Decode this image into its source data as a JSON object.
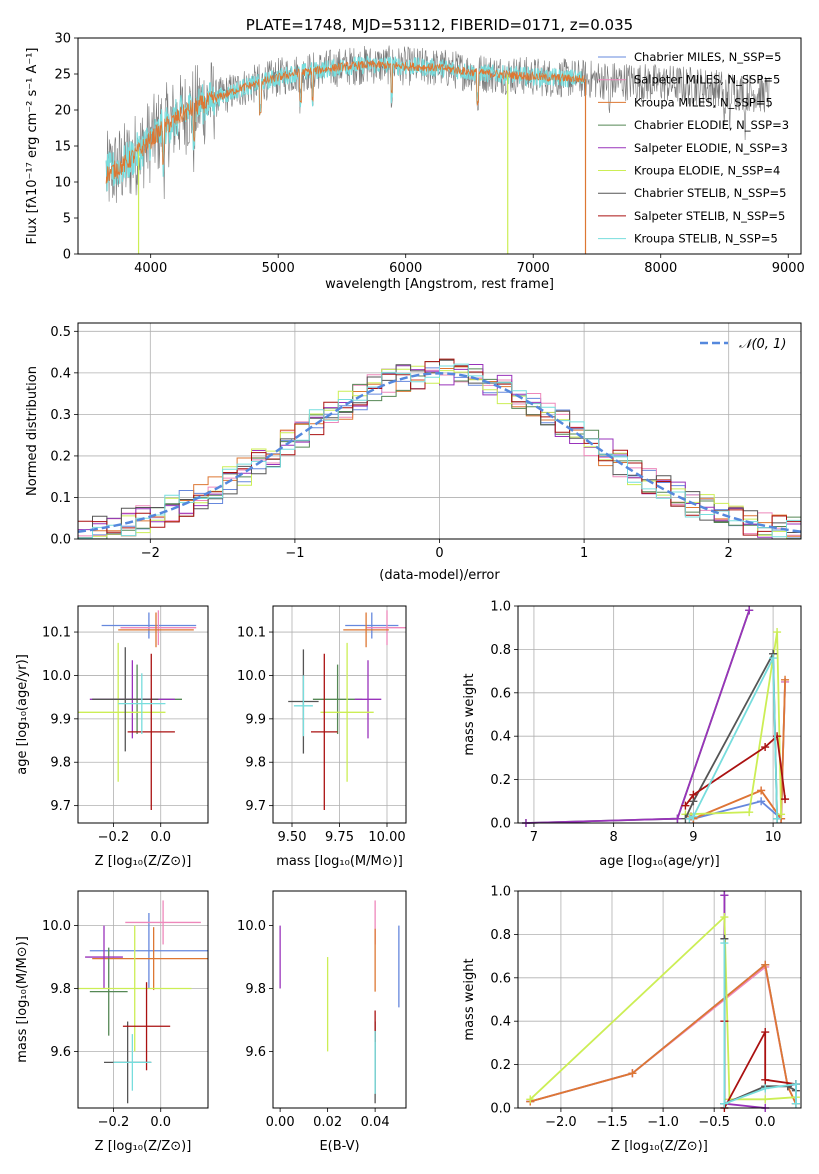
{
  "colors": {
    "chabrier_miles": "#6688dd",
    "salpeter_miles": "#ee88bb",
    "kroupa_miles": "#dd7733",
    "chabrier_elodie": "#558855",
    "salpeter_elodie": "#9933bb",
    "kroupa_elodie": "#ccee55",
    "chabrier_stelib": "#555555",
    "salpeter_stelib": "#aa1111",
    "kroupa_stelib": "#77dddd"
  },
  "chart_data": [
    {
      "id": "spectrum",
      "type": "line",
      "title": "PLATE=1748, MJD=53112, FIBERID=0171, z=0.035",
      "xlabel": "wavelength [Angstrom, rest frame]",
      "ylabel": "Flux [fλ10⁻¹⁷ erg cm⁻² s⁻¹ A⁻¹]",
      "xlim": [
        3430,
        9100
      ],
      "ylim": [
        0,
        30
      ],
      "xticks": [
        4000,
        5000,
        6000,
        7000,
        8000,
        9000
      ],
      "yticks": [
        0,
        5,
        10,
        15,
        20,
        25,
        30
      ],
      "grid": false,
      "legend_position": "top-right",
      "legend": [
        "Chabrier MILES, N_SSP=5",
        "Salpeter MILES, N_SSP=5",
        "Kroupa MILES, N_SSP=5",
        "Chabrier ELODIE, N_SSP=3",
        "Salpeter ELODIE, N_SSP=3",
        "Kroupa ELODIE, N_SSP=4",
        "Chabrier STELIB, N_SSP=5",
        "Salpeter STELIB, N_SSP=5",
        "Kroupa STELIB, N_SSP=5"
      ],
      "continuum": {
        "x": [
          3650,
          3800,
          3950,
          4100,
          4300,
          4500,
          4700,
          4900,
          5100,
          5300,
          5500,
          5700,
          5900,
          6100,
          6300,
          6500,
          6700,
          6900,
          7100,
          7300,
          7500,
          7700,
          8000,
          8300,
          8600,
          8850
        ],
        "y": [
          11,
          12.5,
          15,
          17.5,
          20,
          21.5,
          23,
          24,
          25,
          25.5,
          26,
          26.3,
          26.2,
          26,
          25.8,
          25.3,
          25,
          24.8,
          24.5,
          24.4,
          24.2,
          24,
          23.7,
          23.3,
          22.6,
          22.2
        ]
      },
      "drops": [
        {
          "series": "Kroupa ELODIE",
          "x": 3905
        },
        {
          "series": "Kroupa ELODIE",
          "x": 6800
        },
        {
          "series": "Kroupa MILES",
          "x": 7410
        }
      ]
    },
    {
      "id": "residuals",
      "type": "line",
      "xlabel": "(data-model)/error",
      "ylabel": "Normed distribution",
      "xlim": [
        -2.5,
        2.5
      ],
      "ylim": [
        0,
        0.52
      ],
      "xticks": [
        -2,
        -1,
        0,
        1,
        2
      ],
      "yticks": [
        0.0,
        0.1,
        0.2,
        0.3,
        0.4,
        0.5
      ],
      "grid": true,
      "legend_position": "top-right",
      "legend": [
        "𝒩(0, 1)"
      ],
      "gaussian": {
        "mean": 0,
        "sigma": 1
      }
    },
    {
      "id": "age_vs_Z",
      "type": "scatter",
      "xlabel": "Z [log₁₀(Z/Z⊙)]",
      "ylabel": "age  [log₁₀(age/yr)]",
      "xlim": [
        -0.35,
        0.2
      ],
      "ylim": [
        9.66,
        10.16
      ],
      "xticks": [
        -0.2,
        0.0
      ],
      "yticks": [
        9.7,
        9.8,
        9.9,
        10.0,
        10.1
      ],
      "grid": true,
      "points": [
        {
          "series": "chabrier_miles",
          "x": -0.05,
          "y": 10.115,
          "xerr": 0.2,
          "yerr": 0.03
        },
        {
          "series": "salpeter_miles",
          "x": -0.01,
          "y": 10.11,
          "xerr": 0.16,
          "yerr": 0.04
        },
        {
          "series": "kroupa_miles",
          "x": -0.02,
          "y": 10.105,
          "xerr": 0.16,
          "yerr": 0.04
        },
        {
          "series": "chabrier_elodie",
          "x": -0.1,
          "y": 9.945,
          "xerr": 0.19,
          "yerr": 0.08
        },
        {
          "series": "salpeter_elodie",
          "x": -0.12,
          "y": 9.945,
          "xerr": 0.18,
          "yerr": 0.09
        },
        {
          "series": "kroupa_elodie",
          "x": -0.18,
          "y": 9.915,
          "xerr": 0.2,
          "yerr": 0.16
        },
        {
          "series": "chabrier_stelib",
          "x": -0.15,
          "y": 9.945,
          "xerr": 0.14,
          "yerr": 0.12
        },
        {
          "series": "salpeter_stelib",
          "x": -0.04,
          "y": 9.87,
          "xerr": 0.1,
          "yerr": 0.18
        },
        {
          "series": "kroupa_stelib",
          "x": -0.08,
          "y": 9.935,
          "xerr": 0.1,
          "yerr": 0.07
        }
      ]
    },
    {
      "id": "age_vs_mass",
      "type": "scatter",
      "xlabel": "mass [log₁₀(M/M⊙)]",
      "xlim": [
        9.4,
        10.1
      ],
      "ylim": [
        9.66,
        10.16
      ],
      "xticks": [
        9.5,
        9.75,
        10.0
      ],
      "yticks": [
        9.7,
        9.8,
        9.9,
        10.0,
        10.1
      ],
      "grid": true,
      "points": [
        {
          "series": "chabrier_miles",
          "x": 9.92,
          "y": 10.115,
          "xerr": 0.14,
          "yerr": 0.03
        },
        {
          "series": "salpeter_miles",
          "x": 10.0,
          "y": 10.11,
          "xerr": 0.11,
          "yerr": 0.04
        },
        {
          "series": "kroupa_miles",
          "x": 9.89,
          "y": 10.105,
          "xerr": 0.12,
          "yerr": 0.04
        },
        {
          "series": "chabrier_elodie",
          "x": 9.74,
          "y": 9.945,
          "xerr": 0.13,
          "yerr": 0.08
        },
        {
          "series": "salpeter_elodie",
          "x": 9.9,
          "y": 9.945,
          "xerr": 0.07,
          "yerr": 0.09
        },
        {
          "series": "kroupa_elodie",
          "x": 9.79,
          "y": 9.915,
          "xerr": 0.14,
          "yerr": 0.16
        },
        {
          "series": "chabrier_stelib",
          "x": 9.56,
          "y": 9.94,
          "xerr": 0.08,
          "yerr": 0.12
        },
        {
          "series": "salpeter_stelib",
          "x": 9.67,
          "y": 9.87,
          "xerr": 0.07,
          "yerr": 0.18
        },
        {
          "series": "kroupa_stelib",
          "x": 9.56,
          "y": 9.93,
          "xerr": 0.05,
          "yerr": 0.07
        }
      ]
    },
    {
      "id": "weight_vs_age",
      "type": "line",
      "xlabel": "age  [log₁₀(age/yr)]",
      "ylabel": "mass weight",
      "xlim": [
        6.8,
        10.35
      ],
      "ylim": [
        0,
        1.0
      ],
      "xticks": [
        7,
        8,
        9,
        10
      ],
      "yticks": [
        0.0,
        0.2,
        0.4,
        0.6,
        0.8,
        1.0
      ],
      "grid": true,
      "series": [
        {
          "series": "chabrier_miles",
          "x": [
            8.97,
            9.0,
            9.85,
            10.1,
            10.15
          ],
          "y": [
            0.03,
            0.02,
            0.1,
            0.02,
            0.65
          ]
        },
        {
          "series": "salpeter_miles",
          "x": [
            8.97,
            9.0,
            9.85,
            10.1,
            10.15
          ],
          "y": [
            0.03,
            0.02,
            0.15,
            0.02,
            0.65
          ]
        },
        {
          "series": "kroupa_miles",
          "x": [
            8.97,
            9.0,
            9.85,
            10.1,
            10.15
          ],
          "y": [
            0.03,
            0.02,
            0.15,
            0.02,
            0.66
          ]
        },
        {
          "series": "chabrier_elodie",
          "x": [
            6.9,
            8.8,
            9.7
          ],
          "y": [
            0.0,
            0.02,
            0.98
          ]
        },
        {
          "series": "salpeter_elodie",
          "x": [
            6.9,
            8.8,
            9.7
          ],
          "y": [
            0.0,
            0.02,
            0.98
          ]
        },
        {
          "series": "kroupa_elodie",
          "x": [
            8.9,
            9.7,
            10.05,
            10.1
          ],
          "y": [
            0.04,
            0.05,
            0.88,
            0.04
          ]
        },
        {
          "series": "chabrier_stelib",
          "x": [
            8.9,
            9.0,
            10.0,
            10.05
          ],
          "y": [
            0.02,
            0.1,
            0.78,
            0.02
          ]
        },
        {
          "series": "salpeter_stelib",
          "x": [
            8.9,
            9.0,
            9.9,
            10.05,
            10.15
          ],
          "y": [
            0.08,
            0.13,
            0.35,
            0.4,
            0.11
          ]
        },
        {
          "series": "kroupa_stelib",
          "x": [
            8.95,
            9.0,
            10.0,
            10.05
          ],
          "y": [
            0.02,
            0.03,
            0.76,
            0.02
          ]
        }
      ]
    },
    {
      "id": "mass_vs_Z",
      "type": "scatter",
      "xlabel": "Z [log₁₀(Z/Z⊙)]",
      "ylabel": "mass [log₁₀(M/M⊙)]",
      "xlim": [
        -0.35,
        0.2
      ],
      "ylim": [
        9.42,
        10.11
      ],
      "xticks": [
        -0.2,
        0.0
      ],
      "yticks": [
        9.6,
        9.8,
        10.0
      ],
      "grid": true,
      "points": [
        {
          "series": "chabrier_miles",
          "x": -0.05,
          "y": 9.92,
          "xerr": 0.25,
          "yerr": 0.12
        },
        {
          "series": "salpeter_miles",
          "x": 0.01,
          "y": 10.01,
          "xerr": 0.16,
          "yerr": 0.07
        },
        {
          "series": "kroupa_miles",
          "x": -0.03,
          "y": 9.895,
          "xerr": 0.26,
          "yerr": 0.1
        },
        {
          "series": "chabrier_elodie",
          "x": -0.22,
          "y": 9.79,
          "xerr": 0.08,
          "yerr": 0.14
        },
        {
          "series": "salpeter_elodie",
          "x": -0.24,
          "y": 9.9,
          "xerr": 0.08,
          "yerr": 0.1
        },
        {
          "series": "kroupa_elodie",
          "x": -0.11,
          "y": 9.8,
          "xerr": 0.24,
          "yerr": 0.2
        },
        {
          "series": "chabrier_stelib",
          "x": -0.14,
          "y": 9.565,
          "xerr": 0.1,
          "yerr": 0.13
        },
        {
          "series": "salpeter_stelib",
          "x": -0.06,
          "y": 9.68,
          "xerr": 0.1,
          "yerr": 0.14
        },
        {
          "series": "kroupa_stelib",
          "x": -0.12,
          "y": 9.565,
          "xerr": 0.08,
          "yerr": 0.09
        }
      ]
    },
    {
      "id": "mass_vs_EBV",
      "type": "scatter",
      "xlabel": "E(B-V)",
      "xlim": [
        -0.003,
        0.053
      ],
      "ylim": [
        9.42,
        10.11
      ],
      "xticks": [
        0.0,
        0.02,
        0.04
      ],
      "yticks": [
        9.6,
        9.8,
        10.0
      ],
      "grid": false,
      "points": [
        {
          "series": "chabrier_miles",
          "x": 0.05,
          "y": 9.87,
          "xerr": 0.0,
          "yerr": 0.13
        },
        {
          "series": "salpeter_miles",
          "x": 0.04,
          "y": 10.01,
          "xerr": 0.0,
          "yerr": 0.07
        },
        {
          "series": "kroupa_miles",
          "x": 0.04,
          "y": 9.89,
          "xerr": 0.0,
          "yerr": 0.1
        },
        {
          "series": "salpeter_elodie",
          "x": 0.0,
          "y": 9.9,
          "xerr": 0.0,
          "yerr": 0.1
        },
        {
          "series": "kroupa_elodie",
          "x": 0.02,
          "y": 9.75,
          "xerr": 0.0,
          "yerr": 0.15
        },
        {
          "series": "chabrier_stelib",
          "x": 0.04,
          "y": 9.565,
          "xerr": 0.0,
          "yerr": 0.13
        },
        {
          "series": "salpeter_stelib",
          "x": 0.04,
          "y": 9.68,
          "xerr": 0.0,
          "yerr": 0.05
        },
        {
          "series": "kroupa_stelib",
          "x": 0.04,
          "y": 9.565,
          "xerr": 0.0,
          "yerr": 0.1
        }
      ]
    },
    {
      "id": "weight_vs_Z",
      "type": "line",
      "xlabel": "Z [log₁₀(Z/Z⊙)]",
      "ylabel": "mass weight",
      "xlim": [
        -2.42,
        0.35
      ],
      "ylim": [
        0,
        1.0
      ],
      "xticks": [
        -2.0,
        -1.5,
        -1.0,
        -0.5,
        0.0
      ],
      "yticks": [
        0.0,
        0.2,
        0.4,
        0.6,
        0.8,
        1.0
      ],
      "grid": true,
      "series": [
        {
          "series": "chabrier_miles",
          "x": [
            -2.3,
            -1.3,
            0.0,
            0.22,
            0.3,
            0.3
          ],
          "y": [
            0.03,
            0.16,
            0.66,
            0.1,
            0.11,
            0.02
          ]
        },
        {
          "series": "salpeter_miles",
          "x": [
            -2.3,
            -1.3,
            0.0,
            0.22,
            0.3
          ],
          "y": [
            0.03,
            0.16,
            0.65,
            0.1,
            0.02
          ]
        },
        {
          "series": "kroupa_miles",
          "x": [
            -2.3,
            -1.3,
            0.0,
            0.22,
            0.3
          ],
          "y": [
            0.03,
            0.16,
            0.66,
            0.1,
            0.02
          ]
        },
        {
          "series": "chabrier_elodie",
          "x": [
            -0.4,
            -0.4
          ],
          "y": [
            0.98,
            0.02
          ]
        },
        {
          "series": "salpeter_elodie",
          "x": [
            -0.4,
            -0.4,
            0.0
          ],
          "y": [
            0.98,
            0.02,
            0.0
          ]
        },
        {
          "series": "kroupa_elodie",
          "x": [
            -2.3,
            -0.4,
            -0.35,
            0.0,
            0.3
          ],
          "y": [
            0.04,
            0.88,
            0.04,
            0.04,
            0.05
          ]
        },
        {
          "series": "chabrier_stelib",
          "x": [
            -0.4,
            -0.4,
            0.0,
            0.0,
            0.22,
            0.3
          ],
          "y": [
            0.78,
            0.02,
            0.1,
            0.1,
            0.1,
            0.08
          ]
        },
        {
          "series": "salpeter_stelib",
          "x": [
            -0.4,
            -0.4,
            0.0,
            0.0,
            0.3
          ],
          "y": [
            0.4,
            0.0,
            0.35,
            0.13,
            0.11
          ]
        },
        {
          "series": "kroupa_stelib",
          "x": [
            -0.4,
            -0.4,
            0.0,
            0.3,
            0.3
          ],
          "y": [
            0.76,
            0.02,
            0.09,
            0.11,
            0.02
          ]
        }
      ]
    }
  ]
}
